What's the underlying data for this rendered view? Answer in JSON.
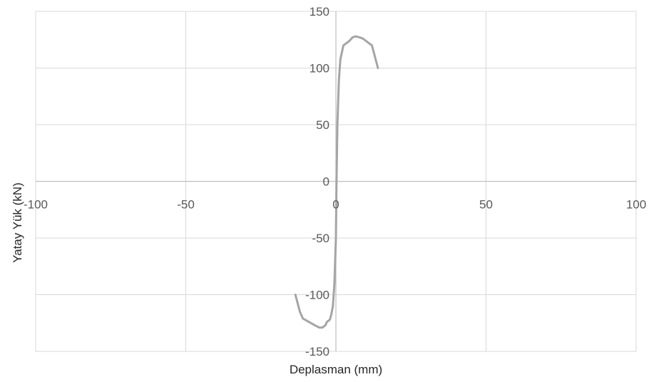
{
  "chart_data": {
    "type": "line",
    "title": "",
    "xlabel": "Deplasman (mm)",
    "ylabel": "Yatay Yük (kN)",
    "xlim": [
      -100,
      100
    ],
    "ylim": [
      -150,
      150
    ],
    "x_ticks": [
      -100,
      -50,
      0,
      50,
      100
    ],
    "y_ticks": [
      -150,
      -100,
      -50,
      0,
      50,
      100,
      150
    ],
    "x_tick_labels": [
      "-100",
      "-50",
      "0",
      "50",
      "100"
    ],
    "y_tick_labels": [
      "-150",
      "-100",
      "-50",
      "0",
      "50",
      "100",
      "150"
    ],
    "grid": true,
    "legend": "none",
    "series": [
      {
        "color": "#a5a5a5",
        "points": [
          [
            -13.5,
            -100
          ],
          [
            -12,
            -115
          ],
          [
            -11,
            -121
          ],
          [
            -9,
            -124
          ],
          [
            -7,
            -127
          ],
          [
            -5.5,
            -129
          ],
          [
            -4.5,
            -129
          ],
          [
            -3.5,
            -127
          ],
          [
            -3,
            -124
          ],
          [
            -2,
            -122
          ],
          [
            -1.5,
            -117
          ],
          [
            -1,
            -110
          ],
          [
            -0.5,
            -90
          ],
          [
            0,
            -50
          ],
          [
            0.2,
            0
          ],
          [
            0.5,
            50
          ],
          [
            1,
            90
          ],
          [
            1.5,
            108
          ],
          [
            2.5,
            120
          ],
          [
            3.5,
            122
          ],
          [
            4.5,
            124
          ],
          [
            5.5,
            127
          ],
          [
            6.5,
            128
          ],
          [
            8,
            127
          ],
          [
            9,
            126
          ],
          [
            11,
            122
          ],
          [
            12,
            120
          ],
          [
            13,
            110
          ],
          [
            14,
            100
          ]
        ]
      }
    ]
  }
}
